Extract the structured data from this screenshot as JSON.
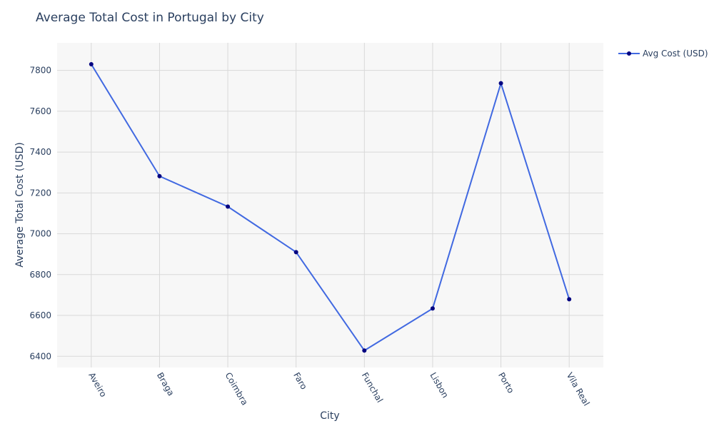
{
  "chart_data": {
    "type": "line",
    "title": "Average Total Cost in Portugal by City",
    "xlabel": "City",
    "ylabel": "Average Total Cost (USD)",
    "categories": [
      "Aveiro",
      "Braga",
      "Coimbra",
      "Faro",
      "Funchal",
      "Lisbon",
      "Porto",
      "Vila Real"
    ],
    "series": [
      {
        "name": "Avg Cost (USD)",
        "values": [
          7830,
          7282,
          7133,
          6910,
          6428,
          6634,
          7737,
          6679
        ]
      }
    ],
    "ylim": [
      6345,
      7935
    ],
    "yticks": [
      6400,
      6600,
      6800,
      7000,
      7200,
      7400,
      7600,
      7800
    ],
    "grid": true,
    "legend_position": "top-right",
    "colors": {
      "line": "#4169e1",
      "marker": "#000080",
      "plot_bg": "#f7f7f7",
      "grid": "#d9d9d9",
      "text": "#2a3f5f"
    }
  }
}
